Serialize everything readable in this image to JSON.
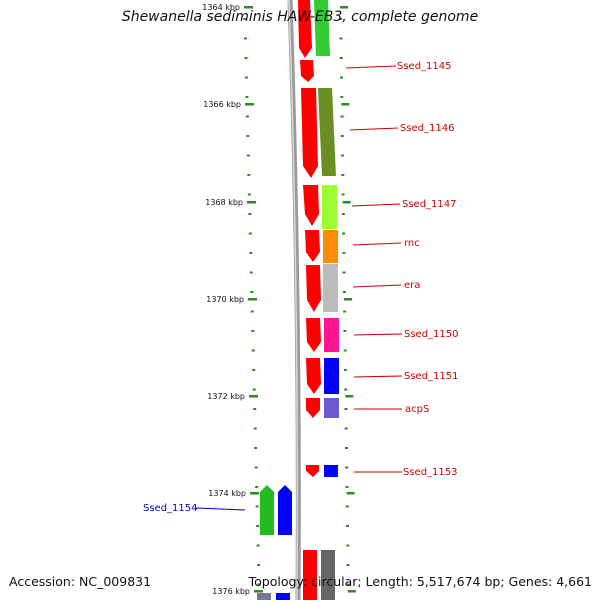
{
  "title": "Shewanella sediminis HAW-EB3, complete genome",
  "accession": "Accession: NC_009831",
  "summary": "Topology: circular; Length: 5,517,674 bp; Genes: 4,661",
  "colors": {
    "tick": "#2e8b1e",
    "axis": "#888888",
    "outer_strand": "#ff0000",
    "label_red": "#cc0000",
    "label_blue": "#0000cc"
  },
  "ticks": [
    "1364 kbp",
    "1366 kbp",
    "1368 kbp",
    "1370 kbp",
    "1372 kbp",
    "1374 kbp",
    "1376 kbp"
  ],
  "genes": [
    {
      "name": "Ssed_1145",
      "color": "#33cc33",
      "label_color": "red"
    },
    {
      "name": "Ssed_1146",
      "color": "#6b8e23",
      "label_color": "red"
    },
    {
      "name": "Ssed_1147",
      "color": "#99ff33",
      "label_color": "red"
    },
    {
      "name": "rnc",
      "color": "#ff8c00",
      "label_color": "red"
    },
    {
      "name": "era",
      "color": "#bbbbbb",
      "label_color": "red"
    },
    {
      "name": "Ssed_1150",
      "color": "#ff1493",
      "label_color": "red"
    },
    {
      "name": "Ssed_1151",
      "color": "#0000ff",
      "label_color": "red"
    },
    {
      "name": "acpS",
      "color": "#6a5acd",
      "label_color": "red"
    },
    {
      "name": "Ssed_1153",
      "color": "#0000ff",
      "label_color": "red"
    },
    {
      "name": "Ssed_1154",
      "color": "#22bb22",
      "label_color": "blue"
    }
  ]
}
